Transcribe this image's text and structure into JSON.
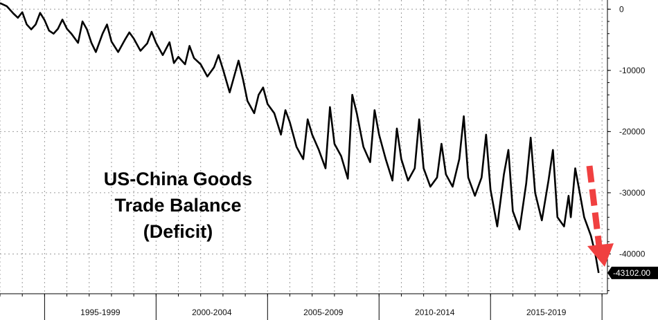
{
  "chart_data": {
    "type": "line",
    "title_lines": [
      "US-China Goods",
      "Trade Balance",
      "(Deficit)"
    ],
    "xlabel": "",
    "ylabel": "",
    "x_range": [
      1993.0,
      2020.15
    ],
    "ylim": [
      -46500,
      1500
    ],
    "y_ticks": [
      0,
      -10000,
      -20000,
      -30000,
      -40000
    ],
    "y_tick_labels": [
      "0",
      "-10000",
      "-20000",
      "-30000",
      "-40000"
    ],
    "x_period_labels": [
      "1995-1999",
      "2000-2004",
      "2005-2009",
      "2010-2014",
      "2015-2019"
    ],
    "x_period_starts": [
      1995,
      2000,
      2005,
      2010,
      2015,
      2020
    ],
    "grid": true,
    "last_value": -43102,
    "last_value_label": "-43102.00",
    "series_color": "#000000",
    "arrow_color": "#f04040",
    "series": [
      {
        "name": "",
        "points": [
          [
            1993.0,
            1000
          ],
          [
            1993.3,
            500
          ],
          [
            1993.6,
            -700
          ],
          [
            1993.8,
            -1400
          ],
          [
            1994.0,
            -500
          ],
          [
            1994.2,
            -2500
          ],
          [
            1994.4,
            -3300
          ],
          [
            1994.6,
            -2500
          ],
          [
            1994.8,
            -600
          ],
          [
            1995.0,
            -1800
          ],
          [
            1995.2,
            -3500
          ],
          [
            1995.4,
            -4000
          ],
          [
            1995.6,
            -3200
          ],
          [
            1995.8,
            -1700
          ],
          [
            1996.0,
            -3200
          ],
          [
            1996.2,
            -4000
          ],
          [
            1996.5,
            -5500
          ],
          [
            1996.7,
            -2000
          ],
          [
            1996.9,
            -3300
          ],
          [
            1997.1,
            -5500
          ],
          [
            1997.3,
            -7000
          ],
          [
            1997.6,
            -4000
          ],
          [
            1997.8,
            -2500
          ],
          [
            1998.0,
            -5300
          ],
          [
            1998.3,
            -7000
          ],
          [
            1998.6,
            -5000
          ],
          [
            1998.8,
            -3800
          ],
          [
            1999.0,
            -4800
          ],
          [
            1999.3,
            -6800
          ],
          [
            1999.6,
            -5600
          ],
          [
            1999.8,
            -3700
          ],
          [
            2000.0,
            -5500
          ],
          [
            2000.3,
            -7500
          ],
          [
            2000.6,
            -5400
          ],
          [
            2000.8,
            -8800
          ],
          [
            2001.0,
            -7800
          ],
          [
            2001.3,
            -9000
          ],
          [
            2001.5,
            -6000
          ],
          [
            2001.7,
            -8000
          ],
          [
            2002.0,
            -9000
          ],
          [
            2002.3,
            -11000
          ],
          [
            2002.6,
            -9500
          ],
          [
            2002.8,
            -7500
          ],
          [
            2003.0,
            -9800
          ],
          [
            2003.3,
            -13600
          ],
          [
            2003.5,
            -11000
          ],
          [
            2003.7,
            -8400
          ],
          [
            2003.9,
            -11500
          ],
          [
            2004.1,
            -15000
          ],
          [
            2004.4,
            -17000
          ],
          [
            2004.6,
            -14000
          ],
          [
            2004.8,
            -12800
          ],
          [
            2005.0,
            -15500
          ],
          [
            2005.3,
            -17000
          ],
          [
            2005.6,
            -20500
          ],
          [
            2005.8,
            -16500
          ],
          [
            2006.0,
            -18500
          ],
          [
            2006.3,
            -22500
          ],
          [
            2006.6,
            -24500
          ],
          [
            2006.8,
            -18000
          ],
          [
            2007.0,
            -20500
          ],
          [
            2007.3,
            -23000
          ],
          [
            2007.6,
            -26000
          ],
          [
            2007.8,
            -16000
          ],
          [
            2008.0,
            -22000
          ],
          [
            2008.3,
            -24000
          ],
          [
            2008.6,
            -27700
          ],
          [
            2008.8,
            -14000
          ],
          [
            2009.0,
            -17000
          ],
          [
            2009.3,
            -22500
          ],
          [
            2009.6,
            -25000
          ],
          [
            2009.8,
            -16500
          ],
          [
            2010.0,
            -20500
          ],
          [
            2010.3,
            -24500
          ],
          [
            2010.6,
            -28000
          ],
          [
            2010.8,
            -19500
          ],
          [
            2011.0,
            -24500
          ],
          [
            2011.3,
            -28000
          ],
          [
            2011.6,
            -26000
          ],
          [
            2011.8,
            -18000
          ],
          [
            2012.0,
            -26000
          ],
          [
            2012.3,
            -29000
          ],
          [
            2012.6,
            -27500
          ],
          [
            2012.8,
            -22000
          ],
          [
            2013.0,
            -27000
          ],
          [
            2013.3,
            -29000
          ],
          [
            2013.6,
            -24500
          ],
          [
            2013.8,
            -17500
          ],
          [
            2014.0,
            -27500
          ],
          [
            2014.3,
            -30500
          ],
          [
            2014.6,
            -27500
          ],
          [
            2014.8,
            -20500
          ],
          [
            2015.0,
            -29500
          ],
          [
            2015.3,
            -35500
          ],
          [
            2015.6,
            -27000
          ],
          [
            2015.8,
            -23000
          ],
          [
            2016.0,
            -33000
          ],
          [
            2016.3,
            -36000
          ],
          [
            2016.6,
            -28500
          ],
          [
            2016.8,
            -21000
          ],
          [
            2017.0,
            -30000
          ],
          [
            2017.3,
            -34500
          ],
          [
            2017.6,
            -28000
          ],
          [
            2017.8,
            -23000
          ],
          [
            2018.0,
            -34000
          ],
          [
            2018.3,
            -35500
          ],
          [
            2018.5,
            -30500
          ],
          [
            2018.6,
            -34000
          ],
          [
            2018.8,
            -26000
          ],
          [
            2019.0,
            -30000
          ],
          [
            2019.2,
            -34000
          ],
          [
            2019.5,
            -37000
          ],
          [
            2019.7,
            -40000
          ],
          [
            2019.85,
            -43102
          ]
        ]
      }
    ]
  }
}
